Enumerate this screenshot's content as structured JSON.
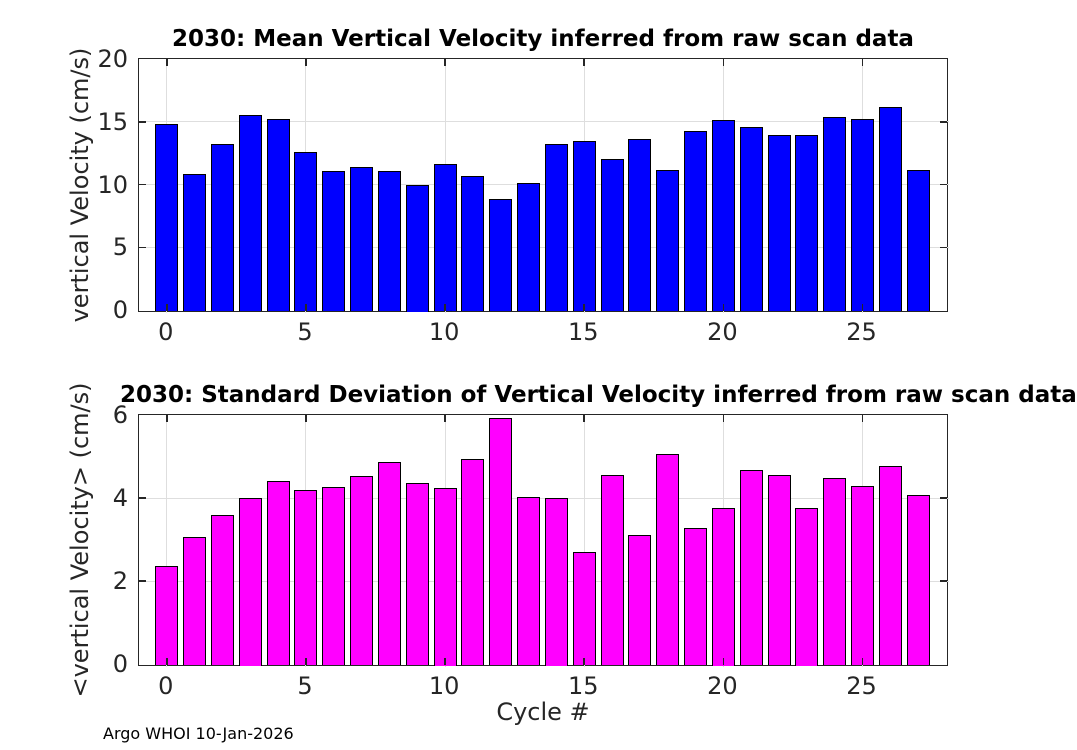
{
  "figure": {
    "footer": "Argo WHOI 10-Jan-2026",
    "xlabel": "Cycle #"
  },
  "colors": {
    "background": "#FFFFFF",
    "axis": "#262626",
    "grid": "#DEDEDE",
    "tick_text": "#262626",
    "title_text": "#000000",
    "bar_mean": "#0000FF",
    "bar_std": "#FF00FF",
    "bar_edge": "#000000"
  },
  "chart_data": [
    {
      "type": "bar",
      "title": "2030: Mean Vertical Velocity inferred from raw scan data",
      "ylabel": "vertical Velocity (cm/s)",
      "xlabel": "",
      "bar_color": "#0000FF",
      "bar_edge_color": "#000000",
      "x": [
        0,
        1,
        2,
        3,
        4,
        5,
        6,
        7,
        8,
        9,
        10,
        11,
        12,
        13,
        14,
        15,
        16,
        17,
        18,
        19,
        20,
        21,
        22,
        23,
        24,
        25,
        26,
        27
      ],
      "values": [
        14.85,
        10.85,
        13.2,
        15.5,
        15.2,
        12.6,
        11.1,
        11.4,
        11.1,
        10.0,
        11.65,
        10.7,
        8.85,
        10.15,
        13.2,
        13.5,
        12.0,
        13.6,
        11.15,
        14.3,
        15.1,
        14.55,
        13.95,
        13.95,
        15.4,
        15.25,
        16.2,
        11.15
      ],
      "xlim": [
        -1,
        28
      ],
      "ylim": [
        0,
        20
      ],
      "xticks": [
        0,
        5,
        10,
        15,
        20,
        25
      ],
      "yticks": [
        0,
        5,
        10,
        15,
        20
      ],
      "grid": true,
      "legend": null
    },
    {
      "type": "bar",
      "title": "2030: Standard Deviation of Vertical Velocity inferred from raw scan data",
      "ylabel": "<vertical Velocity> (cm/s)",
      "xlabel": "Cycle #",
      "bar_color": "#FF00FF",
      "bar_edge_color": "#000000",
      "x": [
        0,
        1,
        2,
        3,
        4,
        5,
        6,
        7,
        8,
        9,
        10,
        11,
        12,
        13,
        14,
        15,
        16,
        17,
        18,
        19,
        20,
        21,
        22,
        23,
        24,
        25,
        26,
        27
      ],
      "values": [
        2.35,
        3.05,
        3.6,
        4.0,
        4.42,
        4.2,
        4.27,
        4.53,
        4.86,
        4.37,
        4.25,
        4.95,
        5.92,
        4.02,
        4.0,
        2.7,
        4.55,
        3.12,
        5.05,
        3.27,
        3.75,
        4.67,
        4.56,
        3.75,
        4.47,
        4.29,
        4.78,
        4.08
      ],
      "xlim": [
        -1,
        28
      ],
      "ylim": [
        0,
        6
      ],
      "xticks": [
        0,
        5,
        10,
        15,
        20,
        25
      ],
      "yticks": [
        0,
        2,
        4,
        6
      ],
      "grid": true,
      "legend": null
    }
  ]
}
